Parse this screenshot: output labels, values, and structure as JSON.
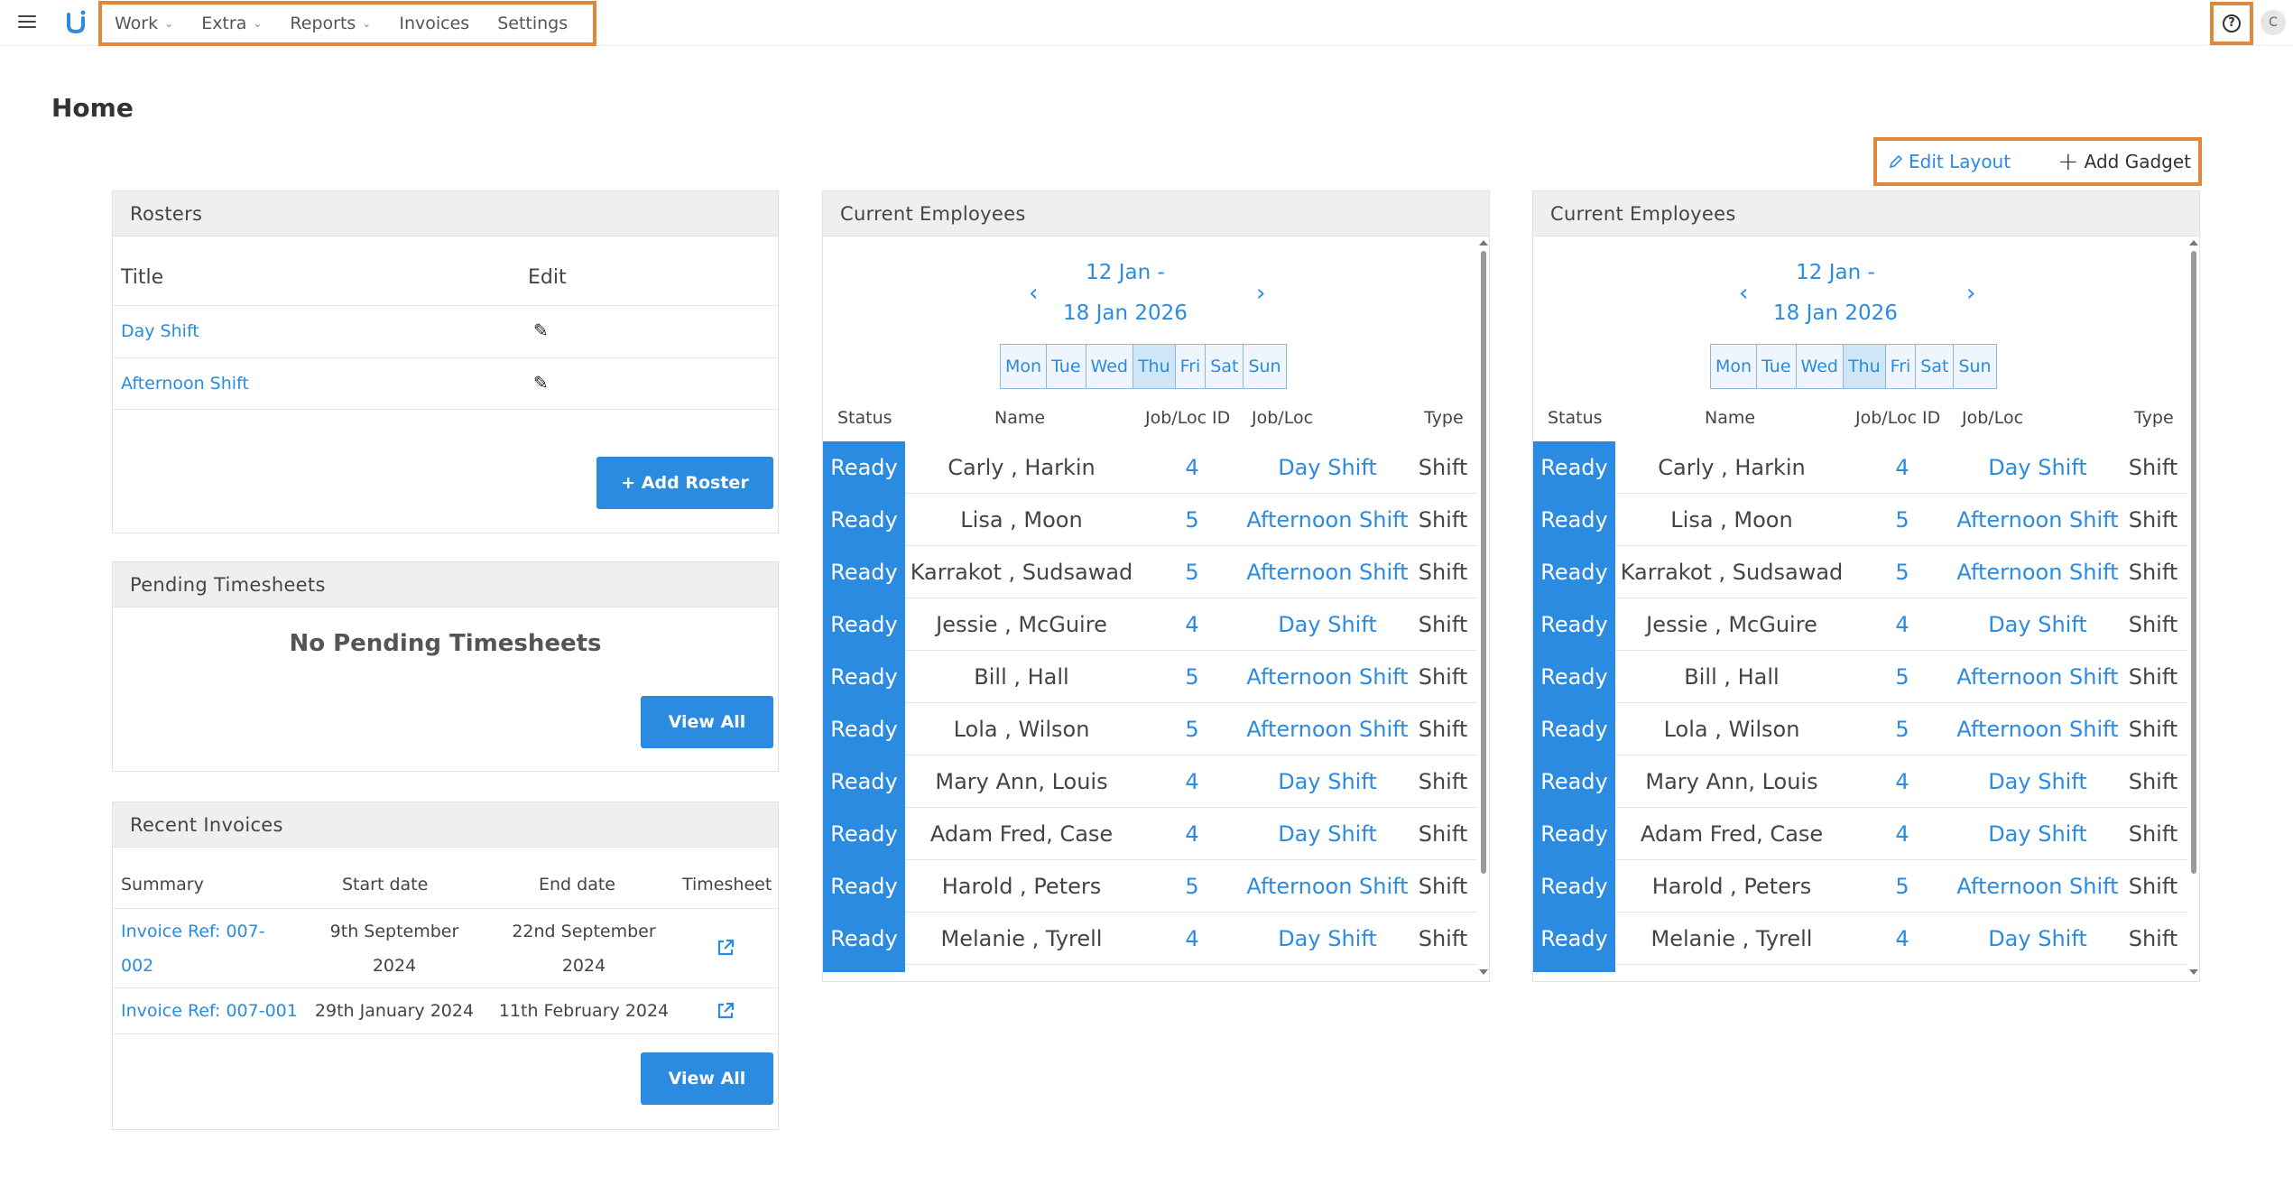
{
  "nav": {
    "items": [
      {
        "label": "Work",
        "dropdown": true
      },
      {
        "label": "Extra",
        "dropdown": true
      },
      {
        "label": "Reports",
        "dropdown": true
      },
      {
        "label": "Invoices",
        "dropdown": false
      },
      {
        "label": "Settings",
        "dropdown": false
      }
    ],
    "avatar_initial": "C",
    "help_icon": "?"
  },
  "page": {
    "title": "Home",
    "edit_layout_label": "Edit Layout",
    "add_gadget_label": "Add Gadget"
  },
  "rosters": {
    "title": "Rosters",
    "col_title": "Title",
    "col_edit": "Edit",
    "rows": [
      {
        "title": "Day Shift"
      },
      {
        "title": "Afternoon Shift"
      }
    ],
    "add_button": "+ Add Roster"
  },
  "pending": {
    "title": "Pending Timesheets",
    "empty_text": "No Pending Timesheets",
    "view_all": "View All"
  },
  "invoices": {
    "title": "Recent Invoices",
    "col_summary": "Summary",
    "col_start": "Start date",
    "col_end": "End date",
    "col_timesheet": "Timesheet",
    "rows": [
      {
        "summary_l1": "Invoice Ref: 007-",
        "summary_l2": "002",
        "start_l1": "9th September",
        "start_l2": "2024",
        "end_l1": "22nd September",
        "end_l2": "2024"
      },
      {
        "summary_l1": "Invoice Ref: 007-001",
        "start_l1": "29th January 2024",
        "end_l1": "11th February 2024"
      }
    ],
    "view_all": "View All"
  },
  "employees": {
    "title": "Current Employees",
    "date_line1": "12 Jan -",
    "date_line2": "18 Jan 2026",
    "days": [
      "Mon",
      "Tue",
      "Wed",
      "Thu",
      "Fri",
      "Sat",
      "Sun"
    ],
    "active_day": "Thu",
    "col_status": "Status",
    "col_name": "Name",
    "col_id": "Job/Loc ID",
    "col_jobloc": "Job/Loc",
    "col_type": "Type",
    "rows": [
      {
        "status": "Ready",
        "name": "Carly , Harkin",
        "id": "4",
        "jobloc": "Day Shift",
        "type": "Shift"
      },
      {
        "status": "Ready",
        "name": "Lisa , Moon",
        "id": "5",
        "jobloc": "Afternoon Shift",
        "type": "Shift"
      },
      {
        "status": "Ready",
        "name": "Karrakot , Sudsawad",
        "id": "5",
        "jobloc": "Afternoon Shift",
        "type": "Shift"
      },
      {
        "status": "Ready",
        "name": "Jessie , McGuire",
        "id": "4",
        "jobloc": "Day Shift",
        "type": "Shift"
      },
      {
        "status": "Ready",
        "name": "Bill , Hall",
        "id": "5",
        "jobloc": "Afternoon Shift",
        "type": "Shift"
      },
      {
        "status": "Ready",
        "name": "Lola , Wilson",
        "id": "5",
        "jobloc": "Afternoon Shift",
        "type": "Shift"
      },
      {
        "status": "Ready",
        "name": "Mary Ann, Louis",
        "id": "4",
        "jobloc": "Day Shift",
        "type": "Shift"
      },
      {
        "status": "Ready",
        "name": "Adam Fred, Case",
        "id": "4",
        "jobloc": "Day Shift",
        "type": "Shift"
      },
      {
        "status": "Ready",
        "name": "Harold , Peters",
        "id": "5",
        "jobloc": "Afternoon Shift",
        "type": "Shift"
      },
      {
        "status": "Ready",
        "name": "Melanie , Tyrell",
        "id": "4",
        "jobloc": "Day Shift",
        "type": "Shift"
      }
    ]
  },
  "colors": {
    "accent": "#2b8be0",
    "highlight_border": "#e0883c",
    "panel_header": "#efefef"
  }
}
